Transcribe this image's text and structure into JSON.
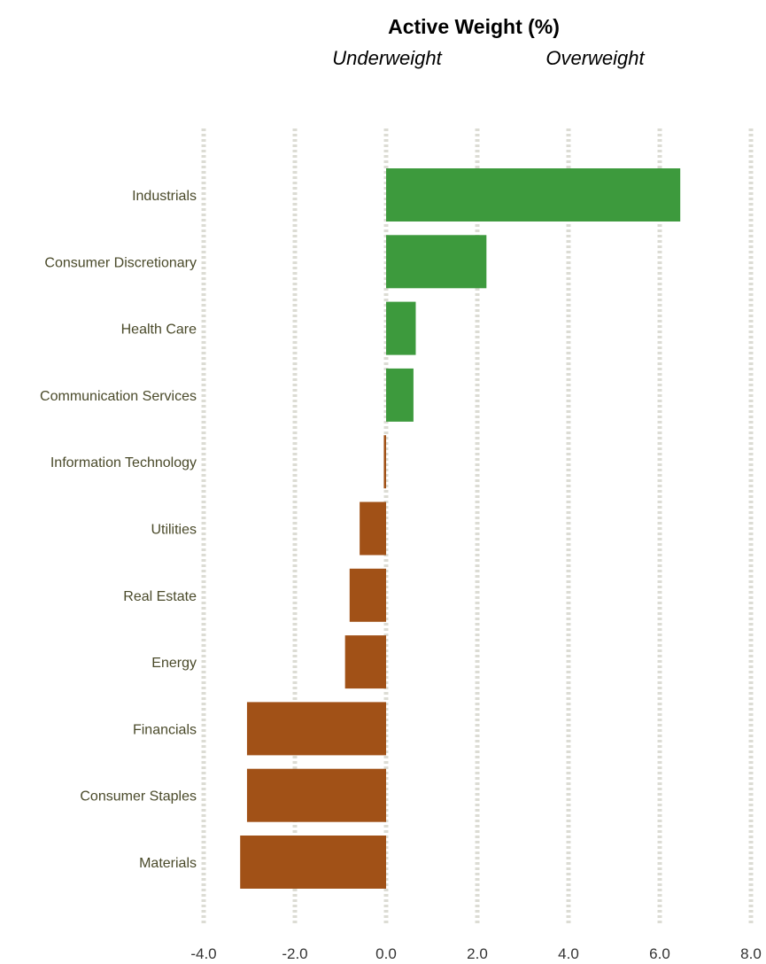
{
  "chart_data": {
    "type": "bar",
    "orientation": "horizontal",
    "title": "Active Weight (%)",
    "subtitle_left": "Underweight",
    "subtitle_right": "Overweight",
    "categories": [
      "Industrials",
      "Consumer Discretionary",
      "Health Care",
      "Communication Services",
      "Information Technology",
      "Utilities",
      "Real Estate",
      "Energy",
      "Financials",
      "Consumer Staples",
      "Materials"
    ],
    "values": [
      6.45,
      2.2,
      0.65,
      0.6,
      -0.05,
      -0.58,
      -0.8,
      -0.9,
      -3.05,
      -3.05,
      -3.2
    ],
    "xlim": [
      -4.0,
      8.0
    ],
    "xticks": [
      "-4.0",
      "-2.0",
      "0.0",
      "2.0",
      "4.0",
      "6.0",
      "8.0"
    ],
    "grid": "vertical-dotted",
    "legend": "none",
    "colors": {
      "positive": "#3d9a3d",
      "negative": "#a15117",
      "grid": "#dcdcd4",
      "category_text": "#4a4a2a"
    }
  }
}
